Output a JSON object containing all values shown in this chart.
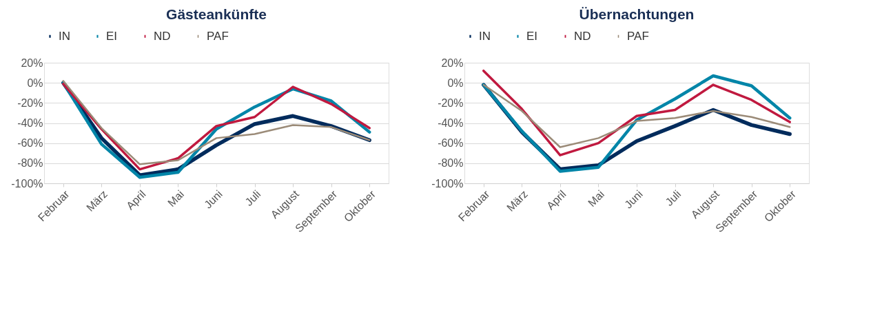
{
  "chart_data": [
    {
      "type": "line",
      "title": "Gästeankünfte",
      "categories": [
        "Februar",
        "März",
        "April",
        "Mai",
        "Juni",
        "Juli",
        "August",
        "September",
        "Oktober"
      ],
      "series": [
        {
          "name": "IN",
          "color": "#002b5c",
          "values": [
            0,
            -55,
            -92,
            -86,
            -62,
            -41,
            -33,
            -43,
            -57
          ]
        },
        {
          "name": "EI",
          "color": "#0085a8",
          "values": [
            0,
            -61,
            -94,
            -89,
            -46,
            -24,
            -6,
            -18,
            -49
          ]
        },
        {
          "name": "ND",
          "color": "#c0193f",
          "values": [
            -1,
            -46,
            -86,
            -75,
            -43,
            -34,
            -4,
            -21,
            -45
          ]
        },
        {
          "name": "PAF",
          "color": "#9b8b78",
          "values": [
            2,
            -45,
            -81,
            -77,
            -55,
            -51,
            -42,
            -44,
            -57
          ]
        }
      ],
      "ylim": [
        -100,
        20
      ],
      "yticks": [
        {
          "value": -100,
          "label": "-100%"
        },
        {
          "value": -80,
          "label": "-80%"
        },
        {
          "value": -60,
          "label": "-60%"
        },
        {
          "value": -40,
          "label": "-40%"
        },
        {
          "value": -20,
          "label": "-20%"
        },
        {
          "value": 0,
          "label": "0%"
        },
        {
          "value": 20,
          "label": "20%"
        }
      ],
      "grid": "y",
      "legend": "top",
      "marker": "none",
      "line_style": "solid"
    },
    {
      "type": "line",
      "title": "Übernachtungen",
      "categories": [
        "Februar",
        "März",
        "April",
        "Mai",
        "Juni",
        "Juli",
        "August",
        "September",
        "Oktober"
      ],
      "series": [
        {
          "name": "IN",
          "color": "#002b5c",
          "values": [
            -2,
            -49,
            -86,
            -82,
            -58,
            -43,
            -27,
            -42,
            -51
          ]
        },
        {
          "name": "EI",
          "color": "#0085a8",
          "values": [
            -2,
            -48,
            -88,
            -84,
            -37,
            -16,
            7,
            -3,
            -35
          ]
        },
        {
          "name": "ND",
          "color": "#c0193f",
          "values": [
            12,
            -26,
            -72,
            -60,
            -33,
            -27,
            -2,
            -17,
            -39
          ]
        },
        {
          "name": "PAF",
          "color": "#9b8b78",
          "values": [
            -2,
            -28,
            -64,
            -55,
            -38,
            -35,
            -28,
            -34,
            -44
          ]
        }
      ],
      "ylim": [
        -100,
        20
      ],
      "yticks": [
        {
          "value": -100,
          "label": "-100%"
        },
        {
          "value": -80,
          "label": "-80%"
        },
        {
          "value": -60,
          "label": "-60%"
        },
        {
          "value": -40,
          "label": "-40%"
        },
        {
          "value": -20,
          "label": "-20%"
        },
        {
          "value": 0,
          "label": "0%"
        },
        {
          "value": 20,
          "label": "20%"
        }
      ],
      "grid": "y",
      "legend": "top",
      "marker": "none",
      "line_style": "solid"
    }
  ]
}
